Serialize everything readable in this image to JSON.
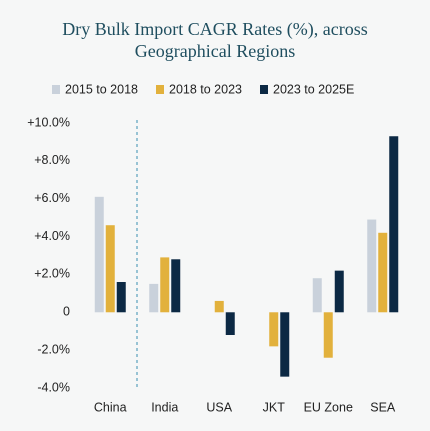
{
  "chart_data": {
    "type": "bar",
    "title": "Dry Bulk Import CAGR Rates (%), across Geographical Regions",
    "categories": [
      "China",
      "India",
      "USA",
      "JKT",
      "EU Zone",
      "SEA"
    ],
    "series": [
      {
        "name": "2015 to 2018",
        "color": "#c9d1db",
        "values": [
          6.1,
          1.5,
          null,
          null,
          1.8,
          4.9
        ]
      },
      {
        "name": "2018 to 2023",
        "color": "#e2b13c",
        "values": [
          4.6,
          2.9,
          0.6,
          -1.8,
          -2.4,
          4.2
        ]
      },
      {
        "name": "2023 to 2025E",
        "color": "#0c2944",
        "values": [
          1.6,
          2.8,
          -1.2,
          -3.4,
          2.2,
          9.3
        ]
      }
    ],
    "ylim": [
      -4,
      10
    ],
    "yticks": [
      {
        "value": 10,
        "label": "+10.0%"
      },
      {
        "value": 8,
        "label": "+8.0%"
      },
      {
        "value": 6,
        "label": "+6.0%"
      },
      {
        "value": 4,
        "label": "+4.0%"
      },
      {
        "value": 2,
        "label": "+2.0%"
      },
      0,
      {
        "value": -2,
        "label": "-2.0%"
      },
      {
        "value": -4,
        "label": "-4.0%"
      }
    ]
  }
}
